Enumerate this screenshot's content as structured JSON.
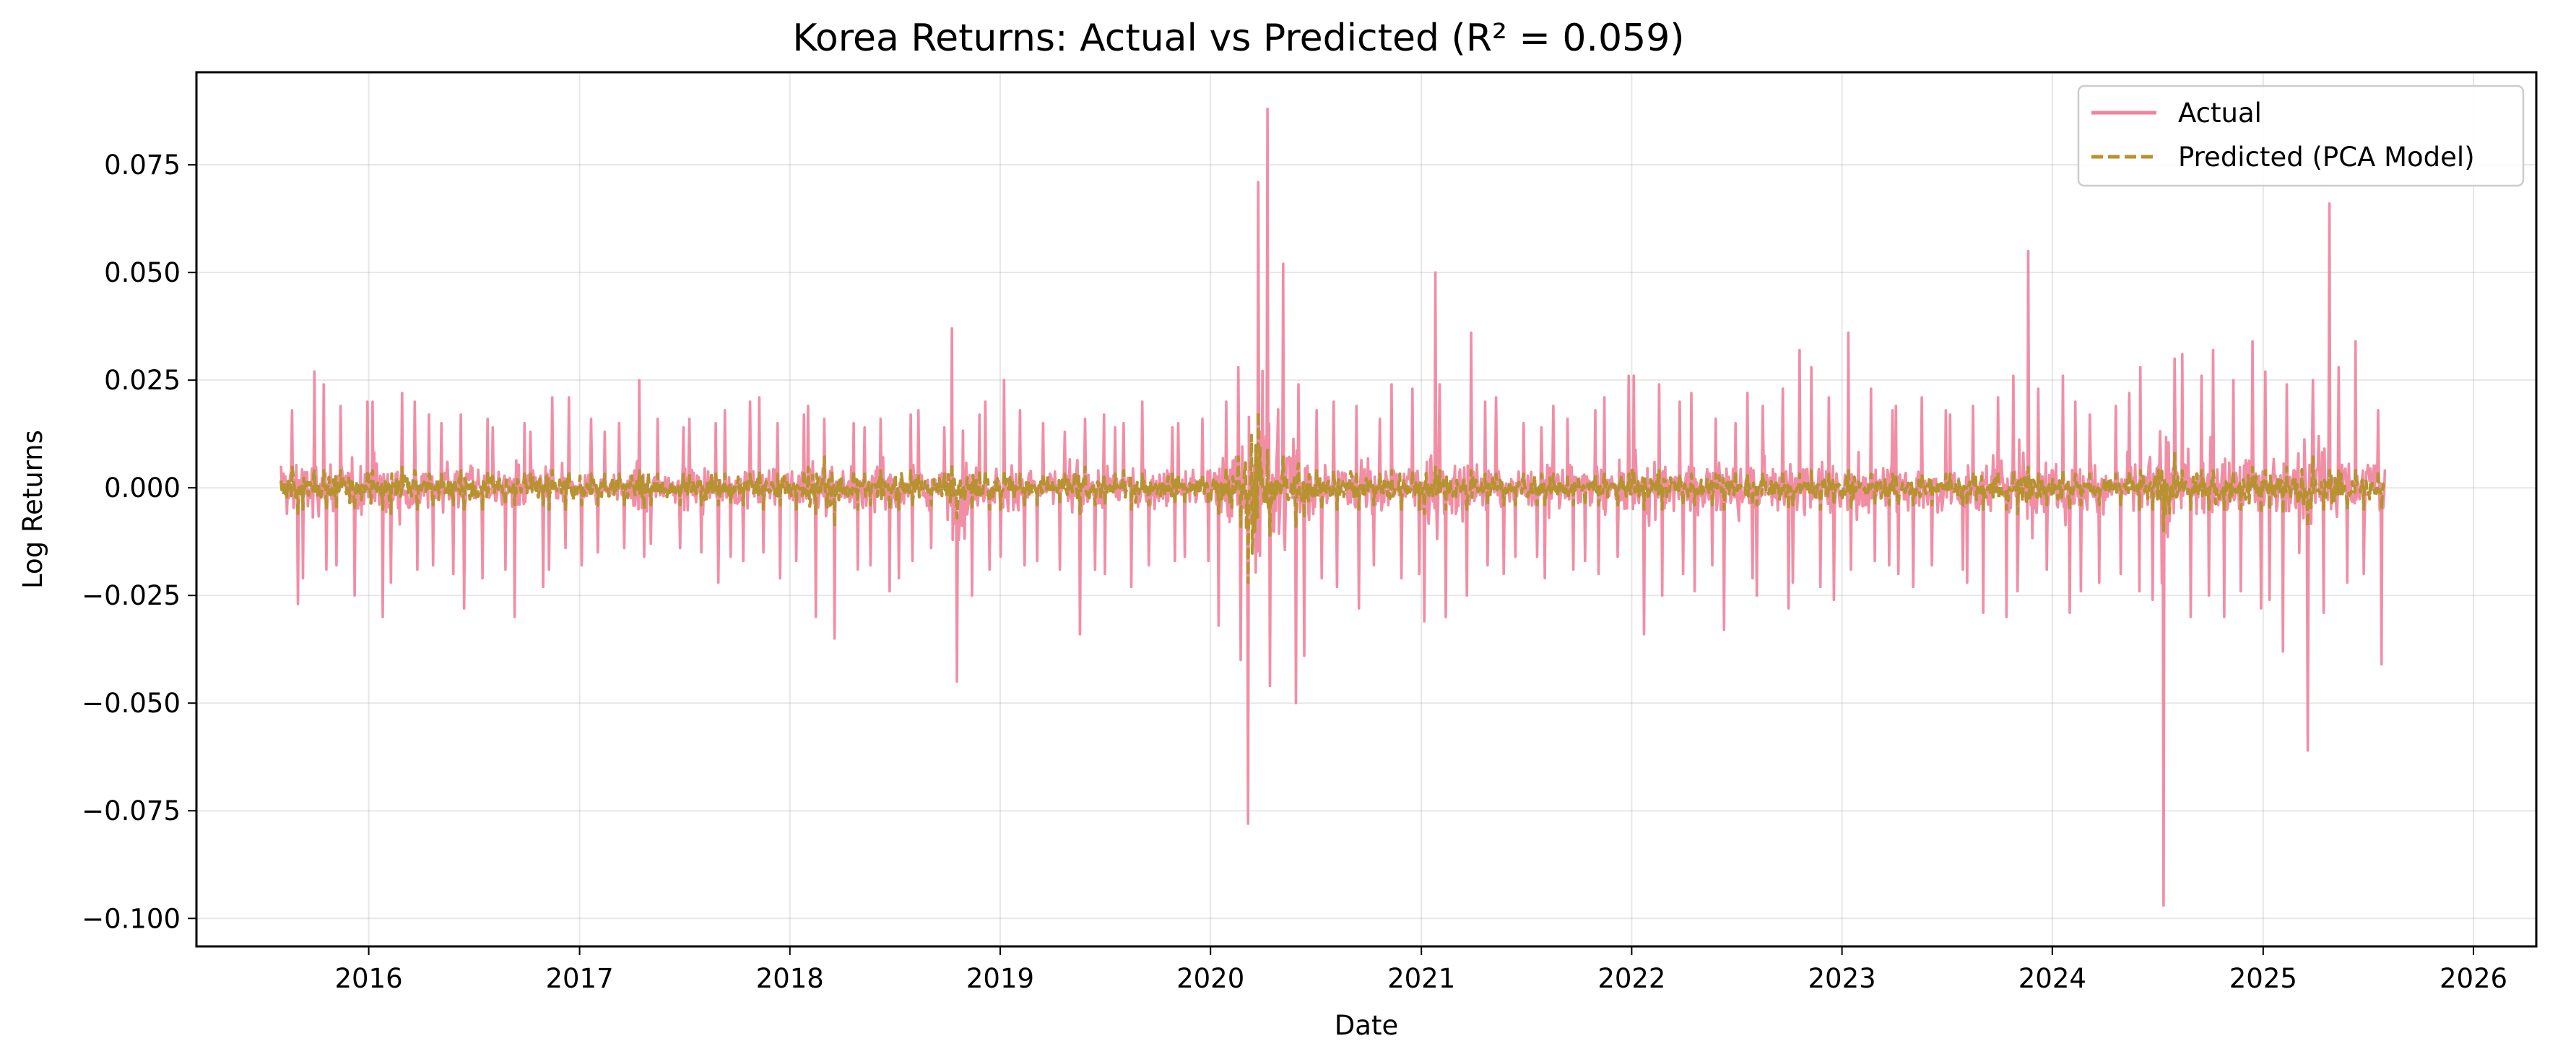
{
  "chart_data": {
    "type": "line",
    "title": "Korea Returns: Actual vs Predicted (R² = 0.059)",
    "xlabel": "Date",
    "ylabel": "Log Returns",
    "x_range": [
      "2015-03-08",
      "2026-04-20"
    ],
    "ylim": [
      -0.1065,
      0.0965
    ],
    "x_ticks": [
      "2016",
      "2017",
      "2018",
      "2019",
      "2020",
      "2021",
      "2022",
      "2023",
      "2024",
      "2025",
      "2026"
    ],
    "y_ticks": [
      -0.1,
      -0.075,
      -0.05,
      -0.025,
      0.0,
      0.025,
      0.05,
      0.075
    ],
    "y_tick_labels": [
      "−0.100",
      "−0.075",
      "−0.050",
      "−0.025",
      "0.000",
      "0.025",
      "0.050",
      "0.075"
    ],
    "grid": true,
    "legend_position": "top-right",
    "x_span": [
      "2015-08-01",
      "2025-08-01"
    ],
    "series": [
      {
        "name": "Actual",
        "color": "#f0829b",
        "style": "solid",
        "sampling": "monthly summary of daily log returns",
        "months": [
          "2015-08",
          "2015-09",
          "2015-10",
          "2015-11",
          "2015-12",
          "2016-01",
          "2016-02",
          "2016-03",
          "2016-04",
          "2016-05",
          "2016-06",
          "2016-07",
          "2016-08",
          "2016-09",
          "2016-10",
          "2016-11",
          "2016-12",
          "2017-01",
          "2017-02",
          "2017-03",
          "2017-04",
          "2017-05",
          "2017-06",
          "2017-07",
          "2017-08",
          "2017-09",
          "2017-10",
          "2017-11",
          "2017-12",
          "2018-01",
          "2018-02",
          "2018-03",
          "2018-04",
          "2018-05",
          "2018-06",
          "2018-07",
          "2018-08",
          "2018-09",
          "2018-10",
          "2018-11",
          "2018-12",
          "2019-01",
          "2019-02",
          "2019-03",
          "2019-04",
          "2019-05",
          "2019-06",
          "2019-07",
          "2019-08",
          "2019-09",
          "2019-10",
          "2019-11",
          "2019-12",
          "2020-01",
          "2020-02",
          "2020-03",
          "2020-04",
          "2020-05",
          "2020-06",
          "2020-07",
          "2020-08",
          "2020-09",
          "2020-10",
          "2020-11",
          "2020-12",
          "2021-01",
          "2021-02",
          "2021-03",
          "2021-04",
          "2021-05",
          "2021-06",
          "2021-07",
          "2021-08",
          "2021-09",
          "2021-10",
          "2021-11",
          "2021-12",
          "2022-01",
          "2022-02",
          "2022-03",
          "2022-04",
          "2022-05",
          "2022-06",
          "2022-07",
          "2022-08",
          "2022-09",
          "2022-10",
          "2022-11",
          "2022-12",
          "2023-01",
          "2023-02",
          "2023-03",
          "2023-04",
          "2023-05",
          "2023-06",
          "2023-07",
          "2023-08",
          "2023-09",
          "2023-10",
          "2023-11",
          "2023-12",
          "2024-01",
          "2024-02",
          "2024-03",
          "2024-04",
          "2024-05",
          "2024-06",
          "2024-07",
          "2024-08",
          "2024-09",
          "2024-10",
          "2024-11",
          "2024-12",
          "2025-01",
          "2025-02",
          "2025-03",
          "2025-04",
          "2025-05",
          "2025-06",
          "2025-07"
        ],
        "monthly_max": [
          0.018,
          0.027,
          0.024,
          0.019,
          0.02,
          0.02,
          0.022,
          0.02,
          0.017,
          0.015,
          0.017,
          0.016,
          0.014,
          0.015,
          0.013,
          0.021,
          0.021,
          0.016,
          0.013,
          0.015,
          0.025,
          0.016,
          0.014,
          0.016,
          0.015,
          0.018,
          0.02,
          0.021,
          0.015,
          0.017,
          0.019,
          0.016,
          0.015,
          0.014,
          0.016,
          0.017,
          0.018,
          0.014,
          0.037,
          0.017,
          0.02,
          0.025,
          0.018,
          0.015,
          0.013,
          0.016,
          0.017,
          0.014,
          0.015,
          0.02,
          0.014,
          0.015,
          0.016,
          0.02,
          0.028,
          0.071,
          0.088,
          0.052,
          0.024,
          0.018,
          0.02,
          0.019,
          0.016,
          0.024,
          0.023,
          0.05,
          0.024,
          0.036,
          0.02,
          0.021,
          0.015,
          0.014,
          0.019,
          0.016,
          0.018,
          0.021,
          0.026,
          0.026,
          0.024,
          0.02,
          0.022,
          0.016,
          0.015,
          0.022,
          0.019,
          0.023,
          0.032,
          0.028,
          0.021,
          0.036,
          0.023,
          0.018,
          0.019,
          0.021,
          0.018,
          0.017,
          0.019,
          0.021,
          0.026,
          0.055,
          0.023,
          0.026,
          0.02,
          0.017,
          0.019,
          0.022,
          0.028,
          0.03,
          0.031,
          0.026,
          0.032,
          0.025,
          0.034,
          0.027,
          0.024,
          0.025,
          0.066,
          0.028,
          0.034,
          0.018
        ],
        "monthly_min": [
          -0.027,
          -0.021,
          -0.019,
          -0.018,
          -0.025,
          -0.03,
          -0.022,
          -0.019,
          -0.018,
          -0.02,
          -0.028,
          -0.021,
          -0.019,
          -0.03,
          -0.023,
          -0.019,
          -0.014,
          -0.018,
          -0.015,
          -0.014,
          -0.016,
          -0.013,
          -0.014,
          -0.015,
          -0.022,
          -0.016,
          -0.017,
          -0.015,
          -0.021,
          -0.017,
          -0.03,
          -0.035,
          -0.019,
          -0.018,
          -0.024,
          -0.021,
          -0.017,
          -0.014,
          -0.045,
          -0.025,
          -0.019,
          -0.016,
          -0.018,
          -0.017,
          -0.019,
          -0.034,
          -0.019,
          -0.02,
          -0.023,
          -0.018,
          -0.017,
          -0.016,
          -0.017,
          -0.032,
          -0.04,
          -0.078,
          -0.046,
          -0.05,
          -0.039,
          -0.021,
          -0.023,
          -0.028,
          -0.018,
          -0.021,
          -0.02,
          -0.031,
          -0.03,
          -0.025,
          -0.018,
          -0.02,
          -0.016,
          -0.016,
          -0.021,
          -0.019,
          -0.017,
          -0.02,
          -0.016,
          -0.034,
          -0.025,
          -0.02,
          -0.024,
          -0.018,
          -0.033,
          -0.021,
          -0.025,
          -0.028,
          -0.022,
          -0.023,
          -0.026,
          -0.019,
          -0.017,
          -0.018,
          -0.02,
          -0.023,
          -0.018,
          -0.019,
          -0.022,
          -0.029,
          -0.03,
          -0.024,
          -0.019,
          -0.029,
          -0.024,
          -0.022,
          -0.02,
          -0.024,
          -0.026,
          -0.097,
          -0.03,
          -0.025,
          -0.03,
          -0.024,
          -0.028,
          -0.026,
          -0.038,
          -0.061,
          -0.029,
          -0.022,
          -0.02,
          -0.041
        ]
      },
      {
        "name": "Predicted (PCA Model)",
        "color": "#b79231",
        "style": "dashed",
        "sampling": "monthly summary of daily log returns",
        "monthly_amplitude": [
          0.006,
          0.005,
          0.005,
          0.005,
          0.005,
          0.005,
          0.006,
          0.005,
          0.004,
          0.004,
          0.005,
          0.005,
          0.004,
          0.004,
          0.004,
          0.005,
          0.005,
          0.004,
          0.004,
          0.004,
          0.005,
          0.004,
          0.004,
          0.004,
          0.004,
          0.004,
          0.004,
          0.005,
          0.004,
          0.005,
          0.006,
          0.009,
          0.005,
          0.004,
          0.005,
          0.005,
          0.004,
          0.004,
          0.007,
          0.005,
          0.005,
          0.005,
          0.004,
          0.004,
          0.004,
          0.006,
          0.004,
          0.004,
          0.005,
          0.004,
          0.004,
          0.004,
          0.004,
          0.006,
          0.009,
          0.022,
          0.011,
          0.009,
          0.007,
          0.005,
          0.005,
          0.005,
          0.004,
          0.005,
          0.005,
          0.006,
          0.005,
          0.005,
          0.004,
          0.004,
          0.004,
          0.004,
          0.004,
          0.004,
          0.004,
          0.004,
          0.004,
          0.005,
          0.005,
          0.004,
          0.004,
          0.004,
          0.005,
          0.004,
          0.004,
          0.005,
          0.004,
          0.005,
          0.004,
          0.005,
          0.004,
          0.004,
          0.004,
          0.004,
          0.004,
          0.004,
          0.004,
          0.005,
          0.005,
          0.006,
          0.004,
          0.005,
          0.004,
          0.004,
          0.004,
          0.005,
          0.005,
          0.01,
          0.005,
          0.005,
          0.005,
          0.005,
          0.006,
          0.005,
          0.006,
          0.009,
          0.005,
          0.005,
          0.005,
          0.005
        ]
      }
    ]
  }
}
